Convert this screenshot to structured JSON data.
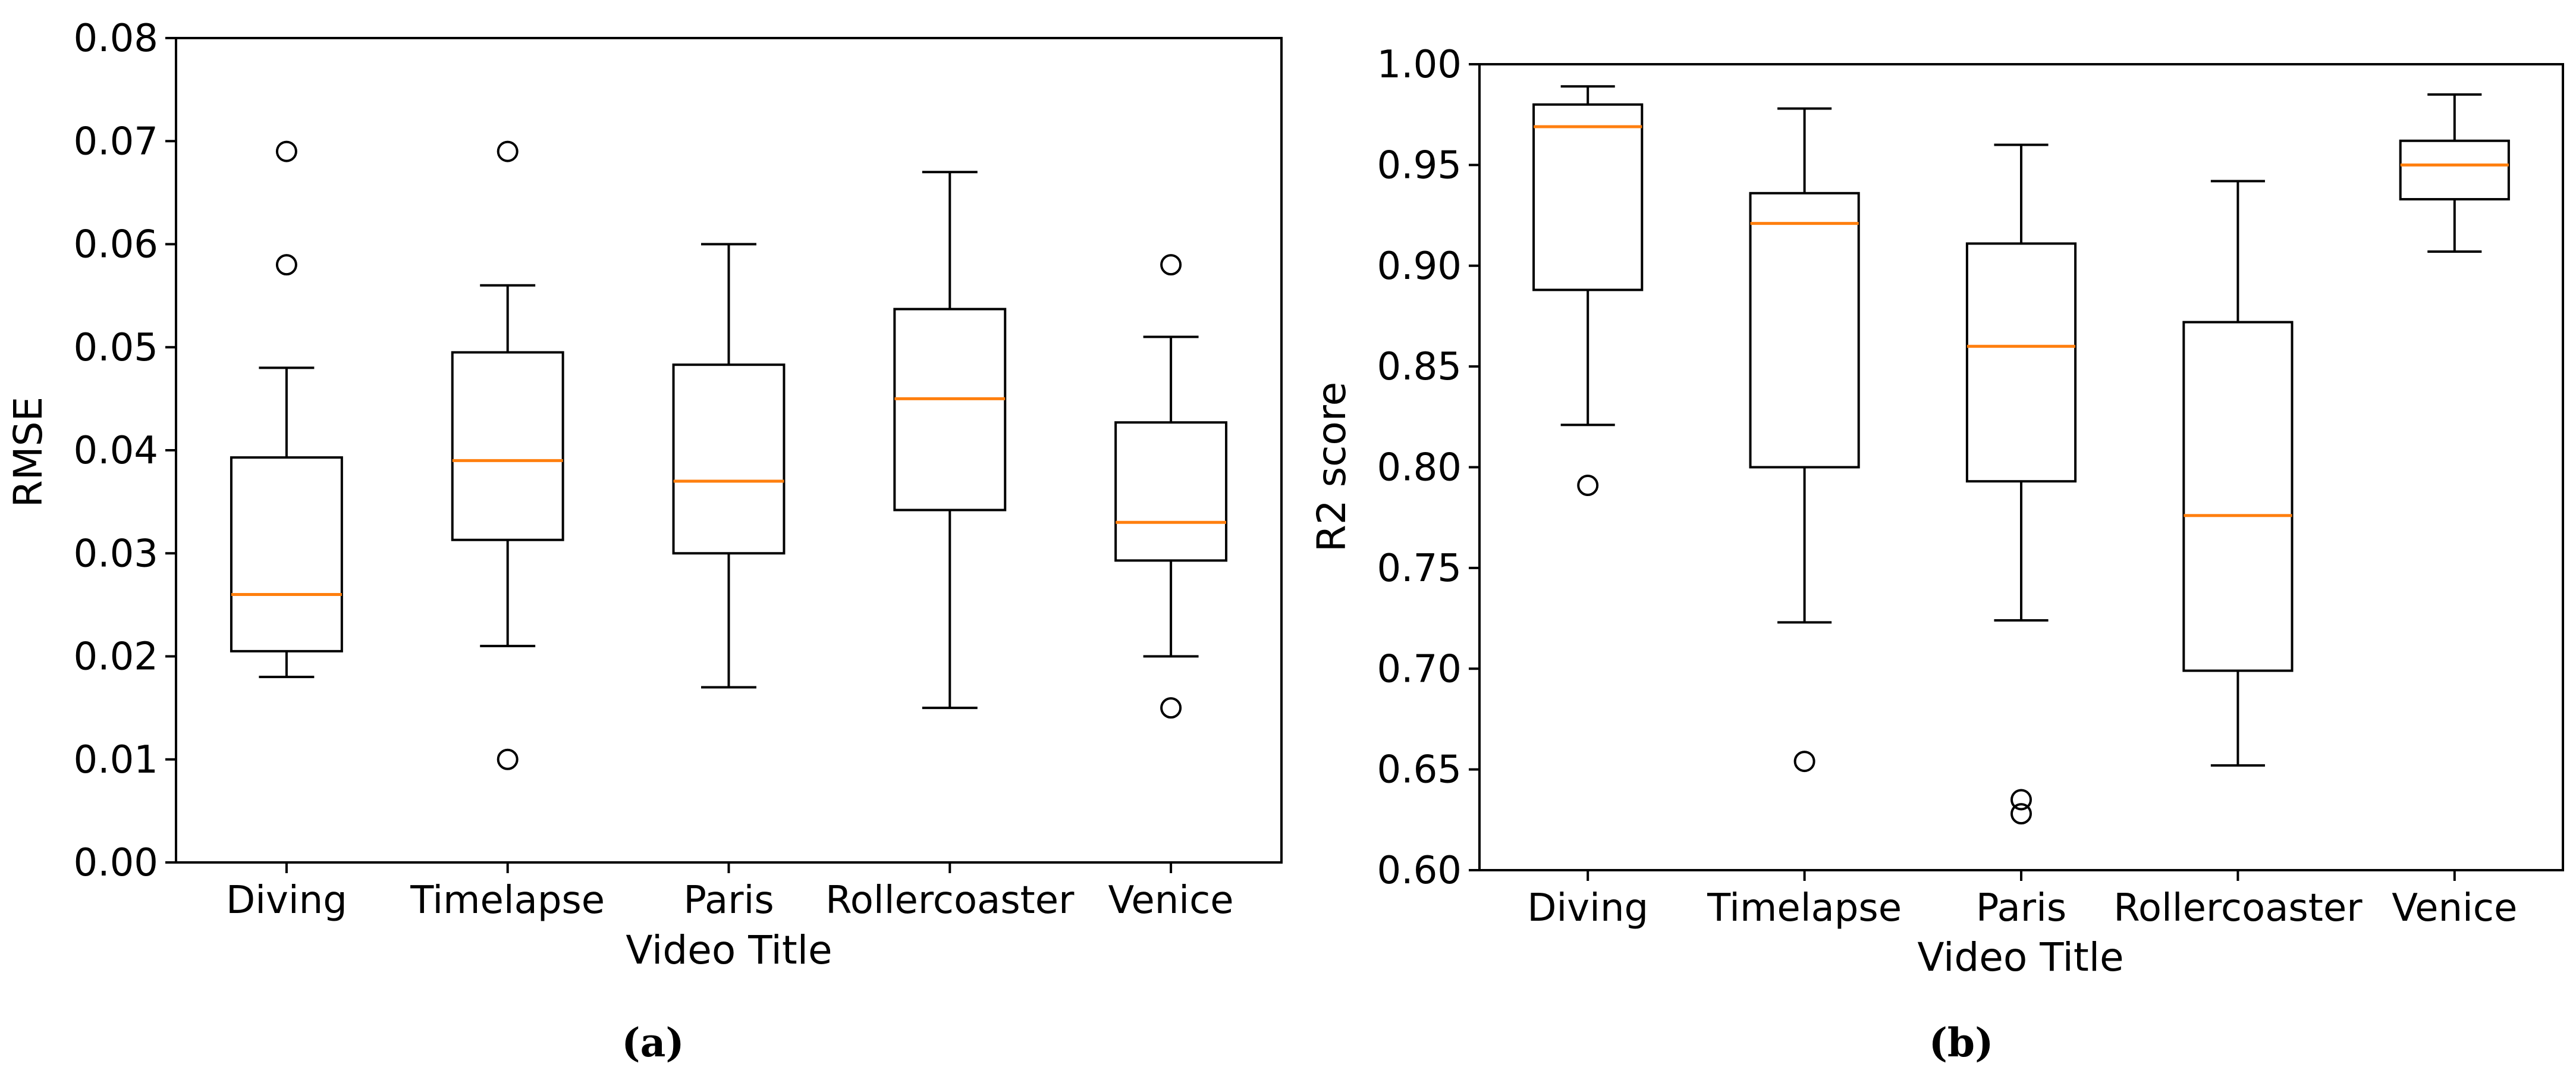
{
  "chart_data": [
    {
      "type": "box",
      "panel": "a",
      "caption": "(a)",
      "xlabel": "Video Title",
      "ylabel": "RMSE",
      "ylim": [
        0.0,
        0.08
      ],
      "yticks": [
        "0.00",
        "0.01",
        "0.02",
        "0.03",
        "0.04",
        "0.05",
        "0.06",
        "0.07",
        "0.08"
      ],
      "categories": [
        "Diving",
        "Timelapse",
        "Paris",
        "Rollercoaster",
        "Venice"
      ],
      "boxes": [
        {
          "whisker_low": 0.018,
          "q1": 0.0205,
          "median": 0.026,
          "q3": 0.0393,
          "whisker_high": 0.048,
          "outliers": [
            0.058,
            0.069
          ]
        },
        {
          "whisker_low": 0.021,
          "q1": 0.0313,
          "median": 0.039,
          "q3": 0.0495,
          "whisker_high": 0.056,
          "outliers": [
            0.01,
            0.069
          ]
        },
        {
          "whisker_low": 0.017,
          "q1": 0.03,
          "median": 0.037,
          "q3": 0.0483,
          "whisker_high": 0.06,
          "outliers": []
        },
        {
          "whisker_low": 0.015,
          "q1": 0.0342,
          "median": 0.045,
          "q3": 0.0537,
          "whisker_high": 0.067,
          "outliers": []
        },
        {
          "whisker_low": 0.02,
          "q1": 0.0293,
          "median": 0.033,
          "q3": 0.0427,
          "whisker_high": 0.051,
          "outliers": [
            0.015,
            0.058
          ]
        }
      ]
    },
    {
      "type": "box",
      "panel": "b",
      "caption": "(b)",
      "xlabel": "Video Title",
      "ylabel": "R2 score",
      "ylim": [
        0.6,
        1.0
      ],
      "yticks": [
        "0.60",
        "0.65",
        "0.70",
        "0.75",
        "0.80",
        "0.85",
        "0.90",
        "0.95",
        "1.00"
      ],
      "categories": [
        "Diving",
        "Timelapse",
        "Paris",
        "Rollercoaster",
        "Venice"
      ],
      "boxes": [
        {
          "whisker_low": 0.821,
          "q1": 0.888,
          "median": 0.969,
          "q3": 0.98,
          "whisker_high": 0.989,
          "outliers": [
            0.791
          ]
        },
        {
          "whisker_low": 0.723,
          "q1": 0.8,
          "median": 0.921,
          "q3": 0.936,
          "whisker_high": 0.978,
          "outliers": [
            0.654
          ]
        },
        {
          "whisker_low": 0.724,
          "q1": 0.793,
          "median": 0.86,
          "q3": 0.911,
          "whisker_high": 0.96,
          "outliers": [
            0.628,
            0.635
          ]
        },
        {
          "whisker_low": 0.652,
          "q1": 0.699,
          "median": 0.776,
          "q3": 0.872,
          "whisker_high": 0.942,
          "outliers": []
        },
        {
          "whisker_low": 0.907,
          "q1": 0.933,
          "median": 0.95,
          "q3": 0.962,
          "whisker_high": 0.985,
          "outliers": []
        }
      ]
    }
  ],
  "colors": {
    "box": "#000000",
    "median": "#ff7f0e",
    "background": "#ffffff"
  }
}
